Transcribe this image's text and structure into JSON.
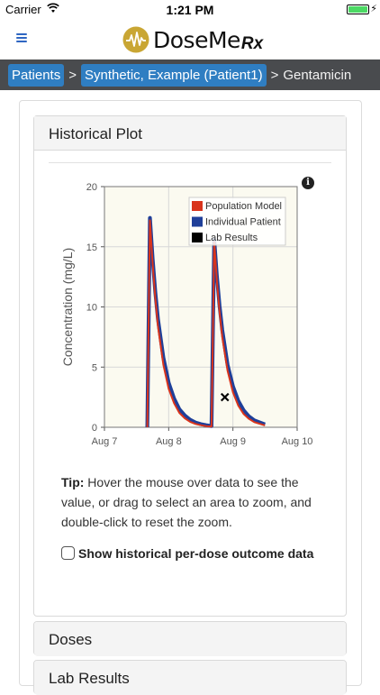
{
  "status_bar": {
    "carrier": "Carrier",
    "time": "1:21 PM",
    "battery_level": 1.0
  },
  "header": {
    "logo_text": "DoseMe",
    "logo_suffix": "Rx"
  },
  "breadcrumb": {
    "items": [
      "Patients",
      "Synthetic, Example (Patient1)"
    ],
    "separator": ">",
    "current": "Gentamicin"
  },
  "historical_plot": {
    "title": "Historical Plot",
    "info_label": "i"
  },
  "chart_data": {
    "type": "line",
    "ylabel": "Concentration (mg/L)",
    "xlabel": "",
    "x_ticks": [
      "Aug 7",
      "Aug 8",
      "Aug 9",
      "Aug 10"
    ],
    "y_ticks": [
      "0",
      "5",
      "10",
      "15",
      "20"
    ],
    "xlim": [
      "Aug 7 00:00",
      "Aug 10 00:00"
    ],
    "ylim": [
      0,
      20
    ],
    "grid": true,
    "legend_position": "top-right",
    "series": [
      {
        "name": "Population Model",
        "color": "#d9341c",
        "x": [
          "Aug 7 16:00",
          "Aug 7 17:00",
          "Aug 7 18:00",
          "Aug 7 19:00",
          "Aug 7 20:00",
          "Aug 7 22:00",
          "Aug 8 00:00",
          "Aug 8 02:00",
          "Aug 8 04:00",
          "Aug 8 06:00",
          "Aug 8 08:00",
          "Aug 8 10:00",
          "Aug 8 12:00",
          "Aug 8 14:00",
          "Aug 8 16:00",
          "Aug 8 17:00",
          "Aug 8 18:00",
          "Aug 8 19:00",
          "Aug 8 20:00",
          "Aug 8 22:00",
          "Aug 9 00:00",
          "Aug 9 02:00",
          "Aug 9 04:00",
          "Aug 9 06:00",
          "Aug 9 08:00",
          "Aug 9 12:00"
        ],
        "y": [
          0,
          17.2,
          13.6,
          10.7,
          8.4,
          5.2,
          3.2,
          2.0,
          1.2,
          0.75,
          0.46,
          0.28,
          0.17,
          0.1,
          0.06,
          15.4,
          12.2,
          9.6,
          7.5,
          4.7,
          2.9,
          1.8,
          1.1,
          0.7,
          0.43,
          0.16
        ]
      },
      {
        "name": "Individual Patient",
        "color": "#1f3f99",
        "x": [
          "Aug 7 16:00",
          "Aug 7 17:00",
          "Aug 7 18:00",
          "Aug 7 19:00",
          "Aug 7 20:00",
          "Aug 7 22:00",
          "Aug 8 00:00",
          "Aug 8 02:00",
          "Aug 8 04:00",
          "Aug 8 06:00",
          "Aug 8 08:00",
          "Aug 8 10:00",
          "Aug 8 12:00",
          "Aug 8 14:00",
          "Aug 8 16:00",
          "Aug 8 17:00",
          "Aug 8 18:00",
          "Aug 8 19:00",
          "Aug 8 20:00",
          "Aug 8 22:00",
          "Aug 9 00:00",
          "Aug 9 02:00",
          "Aug 9 04:00",
          "Aug 9 06:00",
          "Aug 9 08:00",
          "Aug 9 12:00"
        ],
        "y": [
          0,
          17.4,
          14.0,
          11.2,
          9.0,
          5.8,
          3.7,
          2.4,
          1.5,
          0.98,
          0.63,
          0.4,
          0.26,
          0.17,
          0.1,
          15.6,
          12.6,
          10.1,
          8.1,
          5.2,
          3.4,
          2.2,
          1.4,
          0.9,
          0.58,
          0.24
        ]
      },
      {
        "name": "Lab Results",
        "color": "#000000",
        "marker": "x",
        "x": [
          "Aug 8 21:00"
        ],
        "y": [
          2.5
        ]
      }
    ]
  },
  "tip": {
    "label": "Tip:",
    "text": "Hover the mouse over data to see the value, or drag to select an area to zoom, and double-click to reset the zoom."
  },
  "historical_outcome": {
    "label": "Show historical per-dose outcome data",
    "checked": false
  },
  "sections": {
    "doses": "Doses",
    "lab_results": "Lab Results"
  }
}
